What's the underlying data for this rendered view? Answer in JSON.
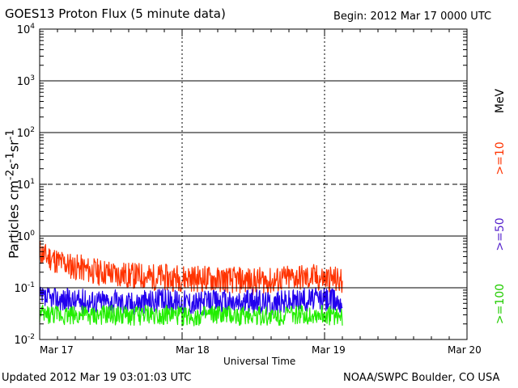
{
  "header": {
    "title": "GOES13 Proton Flux (5 minute data)",
    "begin": "Begin: 2012 Mar 17 0000 UTC"
  },
  "footer": {
    "updated": "Updated 2012 Mar 19 03:01:03 UTC",
    "credit": "NOAA/SWPC Boulder, CO USA"
  },
  "colors": {
    "ge10": "#ff3300",
    "ge50": "#2200ee",
    "ge100": "#22ee00",
    "axis": "#000000"
  },
  "chart_data": {
    "type": "line",
    "title": "GOES13 Proton Flux (5 minute data)",
    "xlabel": "Universal Time",
    "ylabel_base": "Particles cm",
    "ylabel_exp1": "-2",
    "ylabel_mid": "s",
    "ylabel_exp2": "-1",
    "ylabel_unit": "sr",
    "ylabel_exp3": "-1",
    "yscale": "log",
    "ylim": [
      0.01,
      10000
    ],
    "y_ticks": [
      {
        "value": 10000,
        "base": "10",
        "exp": "4"
      },
      {
        "value": 1000,
        "base": "10",
        "exp": "3"
      },
      {
        "value": 100,
        "base": "10",
        "exp": "2"
      },
      {
        "value": 10,
        "base": "10",
        "exp": "1"
      },
      {
        "value": 1,
        "base": "10",
        "exp": "0"
      },
      {
        "value": 0.1,
        "base": "10",
        "exp": "-1"
      },
      {
        "value": 0.01,
        "base": "10",
        "exp": "-2"
      }
    ],
    "x_unit": "hours since 2012 Mar 17 0000 UTC",
    "xlim": [
      0,
      72
    ],
    "x_ticks": [
      {
        "value": 0,
        "label": "Mar 17"
      },
      {
        "value": 24,
        "label": "Mar 18"
      },
      {
        "value": 48,
        "label": "Mar 19"
      },
      {
        "value": 72,
        "label": "Mar 20"
      }
    ],
    "dashed_threshold": 10,
    "right_labels": {
      "unit": "MeV",
      "ge10": ">=10",
      "ge50": ">=50",
      "ge100": ">=100"
    },
    "series": [
      {
        "name": ">=10 MeV",
        "color": "#ff3300",
        "x": [
          0,
          1,
          2,
          3,
          4,
          5,
          6,
          7,
          8,
          9,
          10,
          11,
          12,
          13,
          14,
          15,
          16,
          17,
          18,
          19,
          20,
          21,
          22,
          23,
          24,
          25,
          26,
          27,
          28,
          29,
          30,
          31,
          32,
          33,
          34,
          35,
          36,
          37,
          38,
          39,
          40,
          41,
          42,
          43,
          44,
          45,
          46,
          47,
          48,
          49,
          50,
          51
        ],
        "values": [
          0.5,
          0.4,
          0.38,
          0.32,
          0.3,
          0.27,
          0.25,
          0.24,
          0.22,
          0.21,
          0.2,
          0.2,
          0.19,
          0.18,
          0.18,
          0.17,
          0.17,
          0.17,
          0.16,
          0.16,
          0.16,
          0.16,
          0.15,
          0.16,
          0.15,
          0.16,
          0.15,
          0.15,
          0.15,
          0.15,
          0.14,
          0.15,
          0.14,
          0.14,
          0.14,
          0.14,
          0.13,
          0.14,
          0.14,
          0.13,
          0.14,
          0.15,
          0.15,
          0.16,
          0.16,
          0.15,
          0.16,
          0.15,
          0.15,
          0.15,
          0.14,
          0.13
        ]
      },
      {
        "name": ">=50 MeV",
        "color": "#2200ee",
        "x": [
          0,
          3,
          6,
          9,
          12,
          15,
          18,
          21,
          24,
          27,
          30,
          33,
          36,
          39,
          42,
          45,
          48,
          51
        ],
        "values": [
          0.06,
          0.06,
          0.055,
          0.055,
          0.055,
          0.05,
          0.055,
          0.055,
          0.055,
          0.05,
          0.055,
          0.05,
          0.055,
          0.05,
          0.055,
          0.06,
          0.06,
          0.055
        ]
      },
      {
        "name": ">=100 MeV",
        "color": "#22ee00",
        "x": [
          0,
          3,
          6,
          9,
          12,
          15,
          18,
          21,
          24,
          27,
          30,
          33,
          36,
          39,
          42,
          45,
          48,
          51
        ],
        "values": [
          0.03,
          0.03,
          0.03,
          0.028,
          0.03,
          0.028,
          0.03,
          0.03,
          0.028,
          0.028,
          0.03,
          0.028,
          0.03,
          0.028,
          0.03,
          0.03,
          0.03,
          0.028
        ]
      }
    ]
  }
}
